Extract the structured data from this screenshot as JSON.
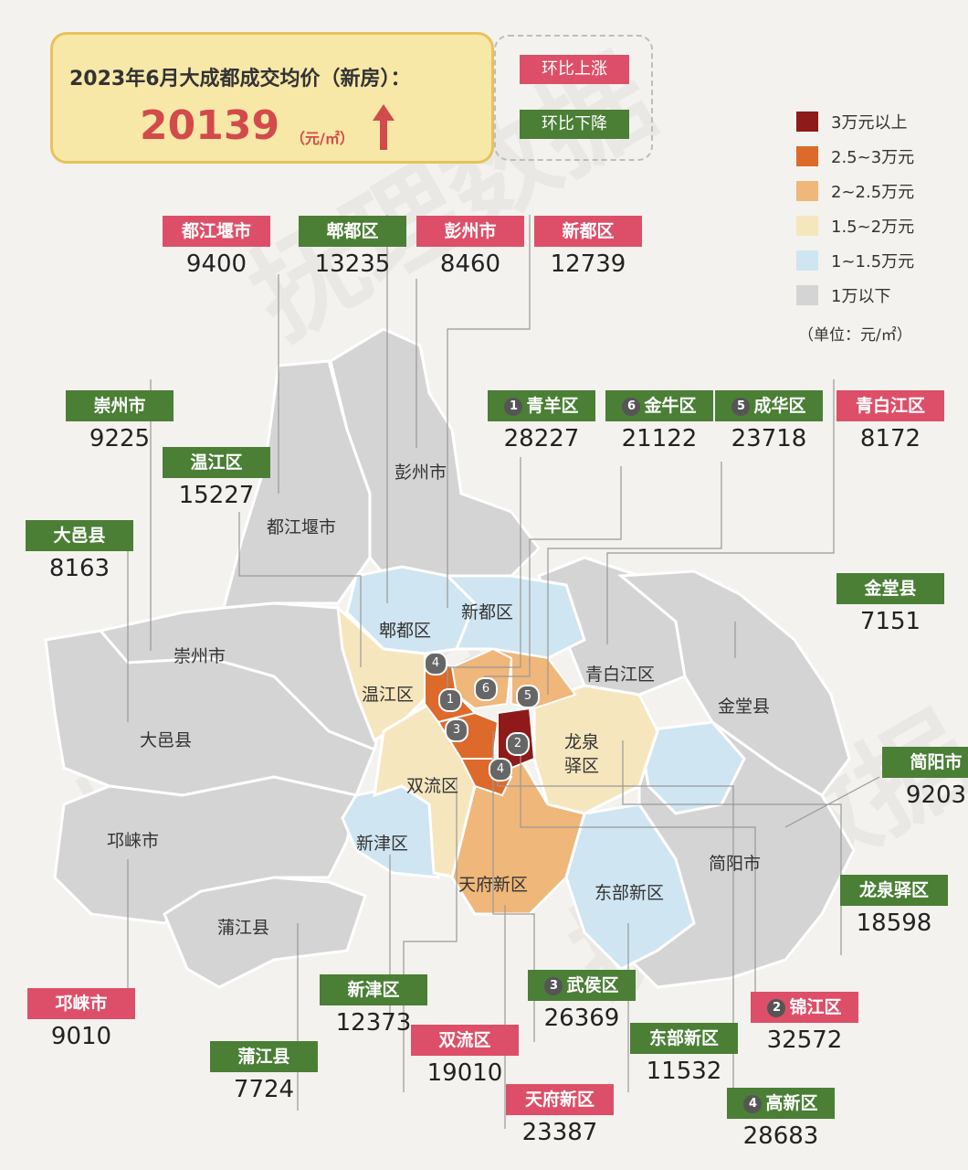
{
  "title": "2023年6月大成都成交均价（新房）：",
  "avg_price": "20139",
  "avg_unit": "（元/㎡）",
  "trend": "up",
  "status_legend": {
    "up": "环比上涨",
    "down": "环比下降"
  },
  "colors": {
    "up": "#dd4f68",
    "down": "#4a7f35"
  },
  "scale": [
    {
      "label": "3万元以上",
      "color": "#8e1a1a"
    },
    {
      "label": "2.5~3万元",
      "color": "#dd6a2a"
    },
    {
      "label": "2~2.5万元",
      "color": "#efb77a"
    },
    {
      "label": "1.5~2万元",
      "color": "#f6e6bd"
    },
    {
      "label": "1~1.5万元",
      "color": "#cfe5f1"
    },
    {
      "label": "1万以下",
      "color": "#d4d4d4"
    }
  ],
  "unit_note": "（单位：元/㎡）",
  "districts": [
    {
      "name": "都江堰市",
      "price": "9400",
      "trend": "up"
    },
    {
      "name": "郫都区",
      "price": "13235",
      "trend": "down"
    },
    {
      "name": "彭州市",
      "price": "8460",
      "trend": "up"
    },
    {
      "name": "新都区",
      "price": "12739",
      "trend": "up"
    },
    {
      "name": "崇州市",
      "price": "9225",
      "trend": "down"
    },
    {
      "name": "温江区",
      "price": "15227",
      "trend": "down"
    },
    {
      "name": "大邑县",
      "price": "8163",
      "trend": "down"
    },
    {
      "name": "青羊区",
      "price": "28227",
      "trend": "down",
      "num": "1"
    },
    {
      "name": "金牛区",
      "price": "21122",
      "trend": "down",
      "num": "6"
    },
    {
      "name": "成华区",
      "price": "23718",
      "trend": "down",
      "num": "5"
    },
    {
      "name": "青白江区",
      "price": "8172",
      "trend": "up"
    },
    {
      "name": "金堂县",
      "price": "7151",
      "trend": "down"
    },
    {
      "name": "简阳市",
      "price": "9203",
      "trend": "down"
    },
    {
      "name": "龙泉驿区",
      "price": "18598",
      "trend": "down"
    },
    {
      "name": "邛崃市",
      "price": "9010",
      "trend": "up"
    },
    {
      "name": "蒲江县",
      "price": "7724",
      "trend": "down"
    },
    {
      "name": "新津区",
      "price": "12373",
      "trend": "down"
    },
    {
      "name": "双流区",
      "price": "19010",
      "trend": "up"
    },
    {
      "name": "武侯区",
      "price": "26369",
      "trend": "down",
      "num": "3"
    },
    {
      "name": "东部新区",
      "price": "11532",
      "trend": "down"
    },
    {
      "name": "天府新区",
      "price": "23387",
      "trend": "up"
    },
    {
      "name": "锦江区",
      "price": "32572",
      "trend": "up",
      "num": "2"
    },
    {
      "name": "高新区",
      "price": "28683",
      "trend": "down",
      "num": "4"
    }
  ],
  "map_labels": {
    "pengzhou": "彭州市",
    "dujiangyan": "都江堰市",
    "pidu": "郫都区",
    "xindu": "新都区",
    "chongzhou": "崇州市",
    "wenjiang": "温江区",
    "qingbaijiang": "青白江区",
    "jintang": "金堂县",
    "dayi": "大邑县",
    "longquanyi_1": "龙泉",
    "longquanyi_2": "驿区",
    "shuangliu": "双流区",
    "qionglai": "邛崃市",
    "xinjin": "新津区",
    "jianyang": "简阳市",
    "tianfu": "天府新区",
    "dongbu": "东部新区",
    "pujiang": "蒲江县"
  },
  "watermark": "抚理数据"
}
